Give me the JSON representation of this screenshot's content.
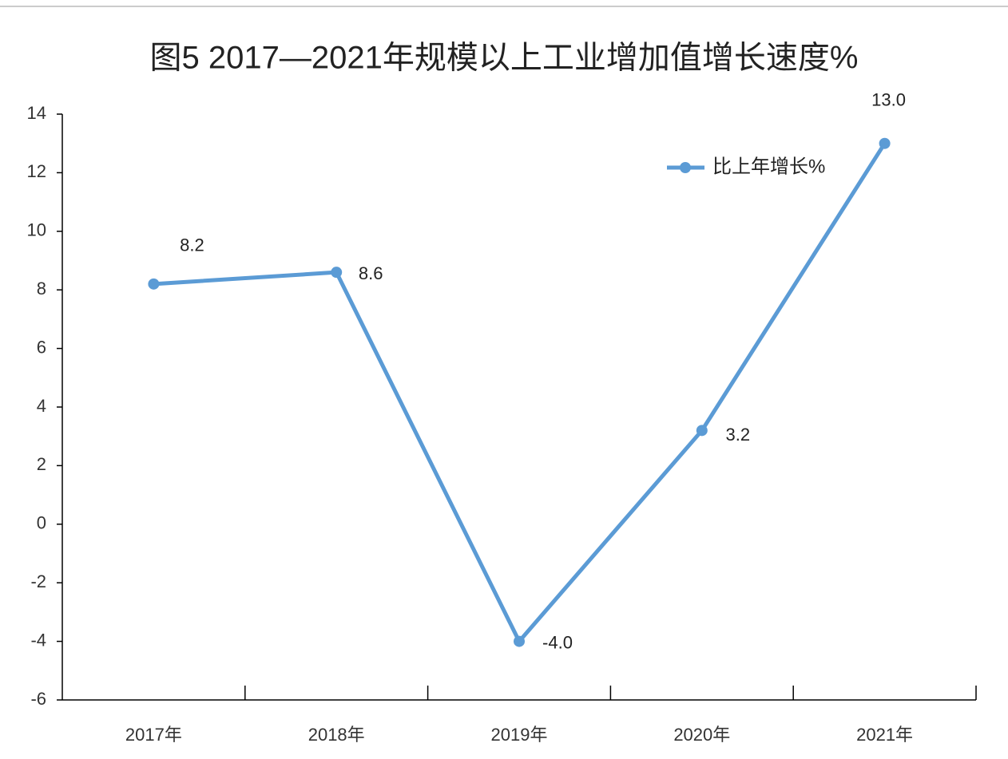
{
  "chart_data": {
    "type": "line",
    "title": "图5  2017—2021年规模以上工业增加值增长速度%",
    "categories": [
      "2017年",
      "2018年",
      "2019年",
      "2020年",
      "2021年"
    ],
    "series": [
      {
        "name": "比上年增长%",
        "color": "#5b9bd5",
        "values": [
          8.2,
          8.6,
          -4.0,
          3.2,
          13.0
        ],
        "value_labels": [
          "8.2",
          "8.6",
          "-4.0",
          "3.2",
          "13.0"
        ]
      }
    ],
    "ylim": [
      -6,
      14
    ],
    "yticks": [
      -6,
      -4,
      -2,
      0,
      2,
      4,
      6,
      8,
      10,
      12,
      14
    ],
    "legend": "top-right"
  }
}
